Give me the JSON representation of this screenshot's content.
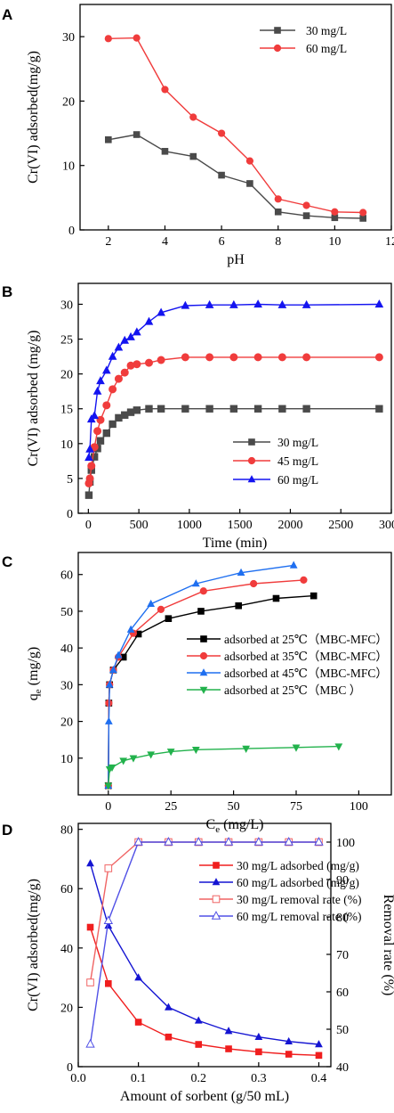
{
  "chart_data": [
    {
      "panel": "A",
      "type": "line",
      "xlabel": "pH",
      "ylabel": "Cr(VI) adsorbed(mg/g)",
      "xlim": [
        1,
        12
      ],
      "ylim": [
        0,
        35
      ],
      "xticks": [
        2,
        4,
        6,
        8,
        10,
        12
      ],
      "yticks": [
        0,
        10,
        20,
        30
      ],
      "legend_position": "top-right",
      "series": [
        {
          "name": "30 mg/L",
          "color": "#4a4a4a",
          "marker": "square",
          "x": [
            2,
            3,
            4,
            5,
            6,
            7,
            8,
            9,
            10,
            11
          ],
          "y": [
            14.0,
            14.8,
            12.2,
            11.4,
            8.5,
            7.2,
            2.8,
            2.2,
            1.9,
            1.8
          ]
        },
        {
          "name": "60 mg/L",
          "color": "#f03c3c",
          "marker": "circle",
          "x": [
            2,
            3,
            4,
            5,
            6,
            7,
            8,
            9,
            10,
            11
          ],
          "y": [
            29.7,
            29.8,
            21.8,
            17.5,
            15.0,
            10.7,
            4.8,
            3.8,
            2.8,
            2.7
          ]
        }
      ]
    },
    {
      "panel": "B",
      "type": "line",
      "xlabel": "Time (min)",
      "ylabel": "Cr(VI) adsorbed (mg/g)",
      "xlim": [
        -100,
        3000
      ],
      "ylim": [
        0,
        33
      ],
      "xticks": [
        0,
        500,
        1000,
        1500,
        2000,
        2500,
        3000
      ],
      "yticks": [
        0,
        5,
        10,
        15,
        20,
        25,
        30
      ],
      "legend_position": "bottom-right",
      "series": [
        {
          "name": "30 mg/L",
          "color": "#4a4a4a",
          "marker": "square",
          "x": [
            5,
            15,
            30,
            60,
            90,
            120,
            180,
            240,
            300,
            360,
            420,
            480,
            600,
            720,
            960,
            1200,
            1440,
            1680,
            1920,
            2160,
            2880
          ],
          "y": [
            2.6,
            4.5,
            6.2,
            8.1,
            9.3,
            10.4,
            11.5,
            12.8,
            13.7,
            14.1,
            14.5,
            14.8,
            15.0,
            15.0,
            15.0,
            15.0,
            15.0,
            15.0,
            15.0,
            15.0,
            15.0
          ]
        },
        {
          "name": "45 mg/L",
          "color": "#f03c3c",
          "marker": "circle",
          "x": [
            5,
            15,
            30,
            60,
            90,
            120,
            180,
            240,
            300,
            360,
            420,
            480,
            600,
            720,
            960,
            1200,
            1440,
            1680,
            1920,
            2160,
            2880
          ],
          "y": [
            4.3,
            5.0,
            6.8,
            9.5,
            11.8,
            13.4,
            15.5,
            17.8,
            19.3,
            20.2,
            21.2,
            21.4,
            21.6,
            22.0,
            22.4,
            22.4,
            22.4,
            22.4,
            22.4,
            22.4,
            22.4
          ]
        },
        {
          "name": "60 mg/L",
          "color": "#1414f0",
          "marker": "triangle",
          "x": [
            5,
            15,
            30,
            60,
            90,
            120,
            180,
            240,
            300,
            360,
            420,
            480,
            600,
            720,
            960,
            1200,
            1440,
            1680,
            1920,
            2160,
            2880
          ],
          "y": [
            8.0,
            9.2,
            13.5,
            14.0,
            17.5,
            19.0,
            20.5,
            22.5,
            23.8,
            24.8,
            25.3,
            26.0,
            27.5,
            28.8,
            29.8,
            29.9,
            29.9,
            30.0,
            29.9,
            29.9,
            30.0
          ]
        }
      ]
    },
    {
      "panel": "C",
      "type": "line",
      "xlabel": "Ce (mg/L)",
      "xlabel_main": "C",
      "xlabel_sub": "e",
      "xlabel_rest": " (mg/L)",
      "ylabel": "qe (mg/g)",
      "ylabel_main": "q",
      "ylabel_sub": "e",
      "ylabel_rest": " (mg/g)",
      "xlim": [
        -12,
        113
      ],
      "ylim": [
        0,
        66
      ],
      "xticks": [
        0,
        25,
        50,
        75,
        100
      ],
      "yticks": [
        10,
        20,
        30,
        40,
        50,
        60
      ],
      "legend_position": "center-right",
      "series": [
        {
          "name": "adsorbed at 25℃（MBC-MFC）",
          "color": "#000000",
          "marker": "square",
          "x": [
            0,
            0.2,
            0.5,
            2,
            6,
            12,
            24,
            37,
            52,
            67,
            82
          ],
          "y": [
            2.5,
            25,
            30,
            34,
            37.5,
            43.8,
            48,
            50,
            51.5,
            53.5,
            54.2
          ]
        },
        {
          "name": "adsorbed at 35℃（MBC-MFC）",
          "color": "#f03c3c",
          "marker": "circle",
          "x": [
            0,
            0.2,
            0.5,
            2,
            4,
            10,
            21,
            38,
            58,
            78
          ],
          "y": [
            2.5,
            25,
            30,
            34,
            37.5,
            44,
            50.5,
            55.5,
            57.5,
            58.5
          ]
        },
        {
          "name": "adsorbed at 45℃（MBC-MFC）",
          "color": "#1f6ff0",
          "marker": "triangle",
          "x": [
            0,
            0.2,
            0.5,
            2,
            4,
            9,
            17,
            35,
            53,
            74
          ],
          "y": [
            2.5,
            20,
            30,
            34,
            38,
            45,
            52,
            57.5,
            60.5,
            62.5
          ]
        },
        {
          "name": "adsorbed at 25℃（MBC ）",
          "color": "#22b24c",
          "marker": "triangle-down",
          "x": [
            0,
            0.5,
            1.5,
            6,
            10,
            17,
            25,
            35,
            55,
            75,
            92
          ],
          "y": [
            2.5,
            7,
            7.5,
            9.3,
            10,
            11,
            11.8,
            12.3,
            12.6,
            12.9,
            13.2
          ]
        }
      ]
    },
    {
      "panel": "D",
      "type": "line",
      "xlabel": "Amount of sorbent (g/50 mL)",
      "ylabel": "Cr(VI) adsorbed(mg/g)",
      "ylabel_right": "Removal rate (%)",
      "xlim": [
        0,
        0.42
      ],
      "ylim": [
        0,
        82
      ],
      "ylim_right": [
        40,
        105
      ],
      "xticks": [
        0.0,
        0.1,
        0.2,
        0.3,
        0.4
      ],
      "yticks": [
        0,
        20,
        40,
        60,
        80
      ],
      "yticks_right": [
        40,
        50,
        60,
        70,
        80,
        90,
        100
      ],
      "legend_position": "top-right",
      "series": [
        {
          "name": "30 mg/L adsorbed (mg/g)",
          "axis": "left",
          "color": "#f01e1e",
          "marker": "square-filled",
          "x": [
            0.02,
            0.05,
            0.1,
            0.15,
            0.2,
            0.25,
            0.3,
            0.35,
            0.4
          ],
          "y": [
            47,
            28,
            15,
            10,
            7.5,
            6,
            5,
            4.2,
            3.8
          ]
        },
        {
          "name": "60 mg/L adsorbed (mg/g)",
          "axis": "left",
          "color": "#1414d2",
          "marker": "triangle-filled",
          "x": [
            0.02,
            0.05,
            0.1,
            0.15,
            0.2,
            0.25,
            0.3,
            0.35,
            0.4
          ],
          "y": [
            68.5,
            47.5,
            30,
            20,
            15.5,
            12,
            10,
            8.5,
            7.5
          ]
        },
        {
          "name": "30 mg/L removal rate (%)",
          "axis": "right",
          "color": "#f06464",
          "marker": "square-open",
          "x": [
            0.02,
            0.05,
            0.1,
            0.15,
            0.2,
            0.25,
            0.3,
            0.35,
            0.4
          ],
          "y": [
            62.5,
            93,
            100,
            100,
            100,
            100,
            100,
            100,
            100
          ]
        },
        {
          "name": "60 mg/L removal rate (%)",
          "axis": "right",
          "color": "#5050e6",
          "marker": "triangle-open",
          "x": [
            0.02,
            0.05,
            0.1,
            0.15,
            0.2,
            0.25,
            0.3,
            0.35,
            0.4
          ],
          "y": [
            46,
            79,
            100,
            100,
            100,
            100,
            100,
            100,
            100
          ]
        }
      ]
    }
  ]
}
